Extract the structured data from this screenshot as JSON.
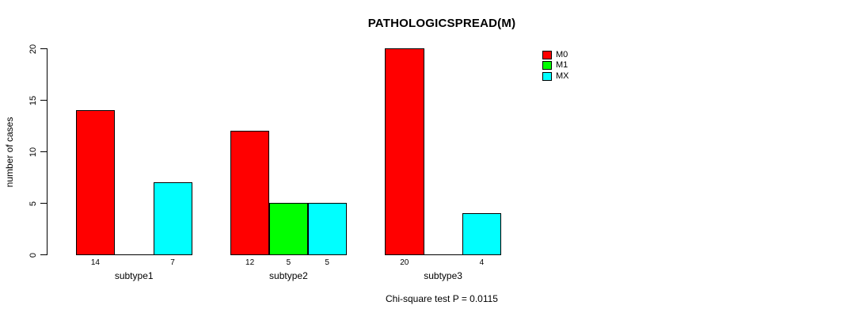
{
  "chart_data": {
    "type": "bar",
    "title": "PATHOLOGICSPREAD(M)",
    "xlabel": "",
    "ylabel": "number of cases",
    "categories": [
      "subtype1",
      "subtype2",
      "subtype3"
    ],
    "series": [
      {
        "name": "M0",
        "color": "#FF0000",
        "values": [
          14,
          12,
          20
        ]
      },
      {
        "name": "M1",
        "color": "#00FF00",
        "values": [
          0,
          5,
          0
        ]
      },
      {
        "name": "MX",
        "color": "#00FFFF",
        "values": [
          7,
          5,
          4
        ]
      }
    ],
    "bar_value_labels": [
      [
        "14",
        "",
        "7"
      ],
      [
        "12",
        "5",
        "5"
      ],
      [
        "20",
        "",
        "4"
      ]
    ],
    "ylim": [
      0,
      20
    ],
    "yticks": [
      0,
      5,
      10,
      15,
      20
    ],
    "grid": false,
    "legend_position": "top-right-of-plot",
    "annotation": "Chi-square test P = 0.0115",
    "axis_color": "#000000",
    "background_color": "#FFFFFF"
  }
}
